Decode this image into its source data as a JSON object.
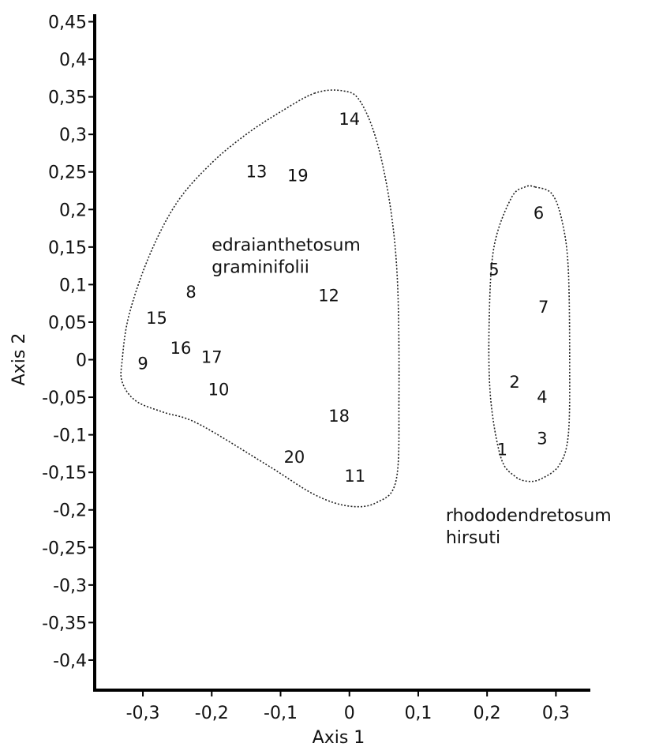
{
  "chart_data": {
    "type": "scatter",
    "xlabel": "Axis 1",
    "ylabel": "Axis 2",
    "xlim": [
      -0.37,
      0.35
    ],
    "ylim": [
      -0.44,
      0.46
    ],
    "xticks": [
      {
        "value": -0.3,
        "label": "-0,3"
      },
      {
        "value": -0.2,
        "label": "-0,2"
      },
      {
        "value": -0.1,
        "label": "-0,1"
      },
      {
        "value": 0,
        "label": "0"
      },
      {
        "value": 0.1,
        "label": "0,1"
      },
      {
        "value": 0.2,
        "label": "0,2"
      },
      {
        "value": 0.3,
        "label": "0,3"
      }
    ],
    "yticks": [
      {
        "value": 0.45,
        "label": "0,45"
      },
      {
        "value": 0.4,
        "label": "0,4"
      },
      {
        "value": 0.35,
        "label": "0,35"
      },
      {
        "value": 0.3,
        "label": "0,3"
      },
      {
        "value": 0.25,
        "label": "0,25"
      },
      {
        "value": 0.2,
        "label": "0,2"
      },
      {
        "value": 0.15,
        "label": "0,15"
      },
      {
        "value": 0.1,
        "label": "0,1"
      },
      {
        "value": 0.05,
        "label": "0,05"
      },
      {
        "value": 0,
        "label": "0"
      },
      {
        "value": -0.05,
        "label": "-0,05"
      },
      {
        "value": -0.1,
        "label": "-0,1"
      },
      {
        "value": -0.15,
        "label": "-0,15"
      },
      {
        "value": -0.2,
        "label": "-0,2"
      },
      {
        "value": -0.25,
        "label": "-0,25"
      },
      {
        "value": -0.3,
        "label": "-0,3"
      },
      {
        "value": -0.35,
        "label": "-0,35"
      },
      {
        "value": -0.4,
        "label": "-0,4"
      }
    ],
    "groups": [
      {
        "label_lines": [
          "edraianthetosum",
          "graminifolii"
        ],
        "label_anchor": [
          -0.2,
          0.145
        ],
        "hull": [
          [
            -0.05,
            0.355
          ],
          [
            -0.1,
            0.33
          ],
          [
            -0.15,
            0.3
          ],
          [
            -0.2,
            0.262
          ],
          [
            -0.25,
            0.21
          ],
          [
            -0.29,
            0.14
          ],
          [
            -0.32,
            0.06
          ],
          [
            -0.33,
            0.0
          ],
          [
            -0.33,
            -0.03
          ],
          [
            -0.31,
            -0.055
          ],
          [
            -0.27,
            -0.07
          ],
          [
            -0.22,
            -0.085
          ],
          [
            -0.12,
            -0.14
          ],
          [
            -0.05,
            -0.18
          ],
          [
            0.0,
            -0.195
          ],
          [
            0.04,
            -0.19
          ],
          [
            0.068,
            -0.16
          ],
          [
            0.072,
            -0.05
          ],
          [
            0.07,
            0.1
          ],
          [
            0.06,
            0.2
          ],
          [
            0.04,
            0.29
          ],
          [
            0.015,
            0.345
          ],
          [
            -0.01,
            0.358
          ]
        ],
        "points": [
          {
            "label": "8",
            "x": -0.23,
            "y": 0.09
          },
          {
            "label": "9",
            "x": -0.3,
            "y": -0.005
          },
          {
            "label": "10",
            "x": -0.19,
            "y": -0.04
          },
          {
            "label": "11",
            "x": 0.008,
            "y": -0.155
          },
          {
            "label": "12",
            "x": -0.03,
            "y": 0.085
          },
          {
            "label": "13",
            "x": -0.135,
            "y": 0.25
          },
          {
            "label": "14",
            "x": 0.0,
            "y": 0.32
          },
          {
            "label": "15",
            "x": -0.28,
            "y": 0.055
          },
          {
            "label": "16",
            "x": -0.245,
            "y": 0.015
          },
          {
            "label": "17",
            "x": -0.2,
            "y": 0.003
          },
          {
            "label": "18",
            "x": -0.015,
            "y": -0.075
          },
          {
            "label": "19",
            "x": -0.075,
            "y": 0.245
          },
          {
            "label": "20",
            "x": -0.08,
            "y": -0.13
          }
        ]
      },
      {
        "label_lines": [
          "rhododendretosum",
          "hirsuti"
        ],
        "label_anchor": [
          0.14,
          -0.215
        ],
        "hull": [
          [
            0.27,
            0.23
          ],
          [
            0.295,
            0.22
          ],
          [
            0.31,
            0.18
          ],
          [
            0.318,
            0.12
          ],
          [
            0.32,
            0.0
          ],
          [
            0.318,
            -0.1
          ],
          [
            0.305,
            -0.14
          ],
          [
            0.28,
            -0.158
          ],
          [
            0.26,
            -0.162
          ],
          [
            0.24,
            -0.155
          ],
          [
            0.22,
            -0.13
          ],
          [
            0.205,
            -0.05
          ],
          [
            0.203,
            0.05
          ],
          [
            0.21,
            0.15
          ],
          [
            0.235,
            0.215
          ],
          [
            0.255,
            0.23
          ]
        ],
        "points": [
          {
            "label": "1",
            "x": 0.222,
            "y": -0.12
          },
          {
            "label": "2",
            "x": 0.24,
            "y": -0.03
          },
          {
            "label": "3",
            "x": 0.28,
            "y": -0.105
          },
          {
            "label": "4",
            "x": 0.28,
            "y": -0.05
          },
          {
            "label": "5",
            "x": 0.21,
            "y": 0.12
          },
          {
            "label": "6",
            "x": 0.275,
            "y": 0.195
          },
          {
            "label": "7",
            "x": 0.282,
            "y": 0.07
          }
        ]
      }
    ]
  }
}
